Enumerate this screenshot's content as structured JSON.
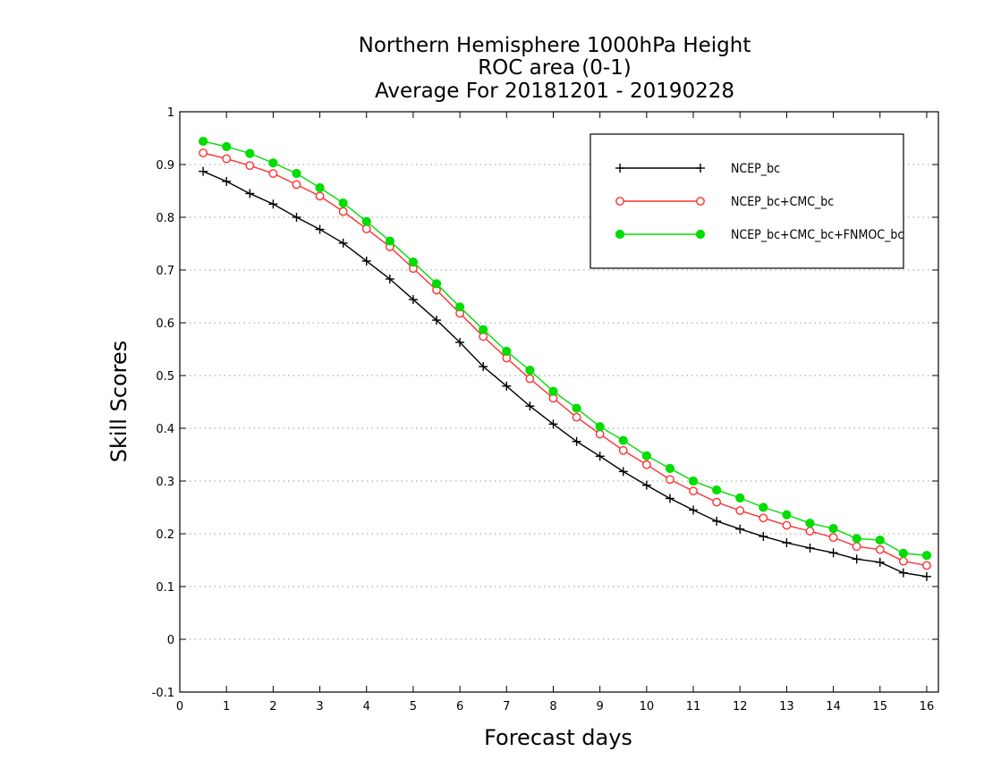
{
  "chart_data": {
    "type": "line",
    "title": [
      "Northern Hemisphere 1000hPa Height",
      "ROC area (0-1)",
      "Average For 20181201 - 20190228"
    ],
    "xlabel": "Forecast days",
    "ylabel": "Skill Scores",
    "xlim": [
      0,
      16.25
    ],
    "ylim": [
      -0.1,
      1
    ],
    "xticks": [
      0,
      1,
      2,
      3,
      4,
      5,
      6,
      7,
      8,
      9,
      10,
      11,
      12,
      13,
      14,
      15,
      16
    ],
    "yticks": [
      -0.1,
      0,
      0.1,
      0.2,
      0.3,
      0.4,
      0.5,
      0.6,
      0.7,
      0.8,
      0.9,
      1
    ],
    "ytick_labels": [
      "-0.1",
      "0",
      "0.1",
      "0.2",
      "0.3",
      "0.4",
      "0.5",
      "0.6",
      "0.7",
      "0.8",
      "0.9",
      "1"
    ],
    "grid": true,
    "legend_position": "top-right",
    "x": [
      0.5,
      1,
      1.5,
      2,
      2.5,
      3,
      3.5,
      4,
      4.5,
      5,
      5.5,
      6,
      6.5,
      7,
      7.5,
      8,
      8.5,
      9,
      9.5,
      10,
      10.5,
      11,
      11.5,
      12,
      12.5,
      13,
      13.5,
      14,
      14.5,
      15,
      15.5,
      16
    ],
    "series": [
      {
        "name": "NCEP_bc",
        "color": "#000000",
        "marker": "plus",
        "values": [
          0.887,
          0.868,
          0.845,
          0.825,
          0.8,
          0.777,
          0.751,
          0.717,
          0.683,
          0.644,
          0.605,
          0.563,
          0.517,
          0.48,
          0.442,
          0.408,
          0.375,
          0.347,
          0.318,
          0.292,
          0.267,
          0.245,
          0.224,
          0.209,
          0.195,
          0.183,
          0.173,
          0.164,
          0.152,
          0.146,
          0.126,
          0.119
        ]
      },
      {
        "name": "NCEP_bc+CMC_bc",
        "color": "#ff3030",
        "marker": "open-circle",
        "values": [
          0.922,
          0.911,
          0.898,
          0.883,
          0.862,
          0.84,
          0.811,
          0.778,
          0.744,
          0.703,
          0.662,
          0.618,
          0.574,
          0.533,
          0.494,
          0.457,
          0.421,
          0.389,
          0.358,
          0.331,
          0.303,
          0.281,
          0.26,
          0.244,
          0.23,
          0.216,
          0.205,
          0.193,
          0.176,
          0.17,
          0.148,
          0.14
        ]
      },
      {
        "name": "NCEP_bc+CMC_bc+FNMOC_bc",
        "color": "#00dd00",
        "marker": "filled-circle",
        "values": [
          0.944,
          0.934,
          0.921,
          0.903,
          0.883,
          0.856,
          0.827,
          0.792,
          0.755,
          0.715,
          0.674,
          0.63,
          0.587,
          0.546,
          0.51,
          0.47,
          0.438,
          0.403,
          0.377,
          0.348,
          0.324,
          0.3,
          0.283,
          0.268,
          0.25,
          0.236,
          0.22,
          0.21,
          0.191,
          0.188,
          0.163,
          0.159
        ]
      }
    ]
  }
}
